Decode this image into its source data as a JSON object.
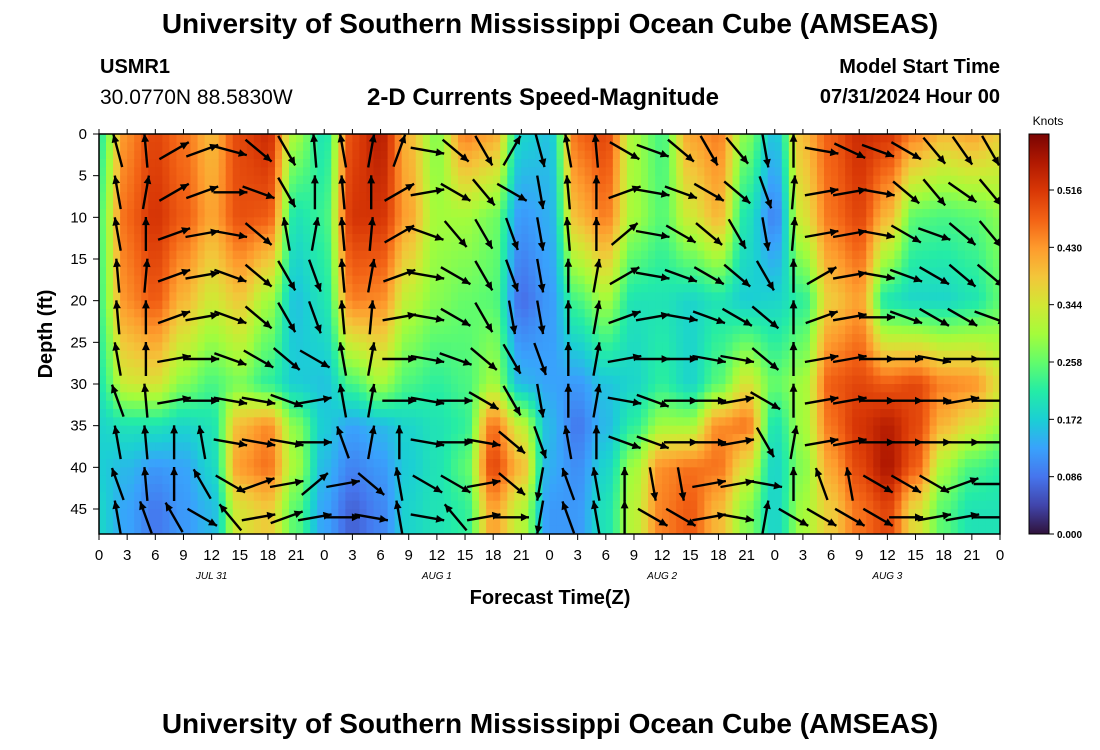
{
  "header": {
    "title": "University of Southern Mississippi Ocean Cube (AMSEAS)",
    "footer_title": "University of Southern Mississippi Ocean Cube (AMSEAS)",
    "station_id": "USMR1",
    "station_coords": "30.0770N  88.5830W",
    "subtitle": "2-D Currents Speed-Magnitude",
    "model_start_label": "Model Start Time",
    "model_start_value": "07/31/2024 Hour 00"
  },
  "chart_data": {
    "type": "heatmap",
    "title": "2-D Currents Speed-Magnitude",
    "xlabel": "Forecast Time(Z)",
    "ylabel": "Depth (ft)",
    "x_unit": "hours since 07/31/2024 00Z",
    "xlim": [
      0,
      96
    ],
    "ylim": [
      0,
      48
    ],
    "x_tick_labels": [
      "0",
      "3",
      "6",
      "9",
      "12",
      "15",
      "18",
      "21",
      "0",
      "3",
      "6",
      "9",
      "12",
      "15",
      "18",
      "21",
      "0",
      "3",
      "6",
      "9",
      "12",
      "15",
      "18",
      "21",
      "0",
      "3",
      "6",
      "9",
      "12",
      "15",
      "18",
      "21",
      "0"
    ],
    "y_ticks": [
      0,
      5,
      10,
      15,
      20,
      25,
      30,
      35,
      40,
      45
    ],
    "date_labels": [
      {
        "label": "JUL 31",
        "hour": 12
      },
      {
        "label": "AUG 1",
        "hour": 36
      },
      {
        "label": "AUG 2",
        "hour": 60
      },
      {
        "label": "AUG 3",
        "hour": 84
      }
    ],
    "colorbar": {
      "label": "Knots",
      "min": 0.0,
      "max": 0.6,
      "ticks": [
        0.0,
        0.086,
        0.172,
        0.258,
        0.344,
        0.43,
        0.516
      ],
      "tick_labels": [
        "0.000",
        "0.086",
        "0.172",
        "0.258",
        "0.344",
        "0.430",
        "0.516"
      ],
      "colors": [
        "#30123b",
        "#4145ab",
        "#4675ed",
        "#39a2fc",
        "#1bcfd4",
        "#24eca6",
        "#61fc6c",
        "#a4fc3b",
        "#d1e834",
        "#f3c63a",
        "#fe9b2d",
        "#f36315",
        "#d93806",
        "#b11901",
        "#7a0403"
      ]
    },
    "speed_keyframes": [
      {
        "hour": 0,
        "depths": [
          0,
          10,
          20,
          30,
          35,
          40,
          45
        ],
        "values": [
          0.22,
          0.25,
          0.24,
          0.21,
          0.18,
          0.17,
          0.18
        ]
      },
      {
        "hour": 3,
        "depths": [
          0,
          10,
          20,
          30,
          35,
          40,
          45
        ],
        "values": [
          0.44,
          0.47,
          0.44,
          0.34,
          0.2,
          0.15,
          0.13
        ]
      },
      {
        "hour": 6,
        "depths": [
          0,
          10,
          20,
          30,
          35,
          40,
          45
        ],
        "values": [
          0.5,
          0.52,
          0.48,
          0.35,
          0.2,
          0.12,
          0.09
        ]
      },
      {
        "hour": 9,
        "depths": [
          0,
          10,
          20,
          30,
          35,
          40,
          45
        ],
        "values": [
          0.46,
          0.48,
          0.4,
          0.28,
          0.18,
          0.13,
          0.12
        ]
      },
      {
        "hour": 12,
        "depths": [
          0,
          10,
          20,
          30,
          35,
          40,
          45
        ],
        "values": [
          0.4,
          0.42,
          0.34,
          0.24,
          0.2,
          0.18,
          0.15
        ]
      },
      {
        "hour": 15,
        "depths": [
          0,
          10,
          20,
          30,
          35,
          40,
          45
        ],
        "values": [
          0.5,
          0.49,
          0.38,
          0.27,
          0.4,
          0.43,
          0.35
        ]
      },
      {
        "hour": 18,
        "depths": [
          0,
          10,
          20,
          30,
          35,
          40,
          45
        ],
        "values": [
          0.53,
          0.48,
          0.3,
          0.22,
          0.44,
          0.46,
          0.38
        ]
      },
      {
        "hour": 21,
        "depths": [
          0,
          10,
          20,
          30,
          35,
          40,
          45
        ],
        "values": [
          0.3,
          0.2,
          0.16,
          0.17,
          0.28,
          0.3,
          0.25
        ]
      },
      {
        "hour": 24,
        "depths": [
          0,
          10,
          20,
          30,
          35,
          40,
          45
        ],
        "values": [
          0.2,
          0.23,
          0.2,
          0.16,
          0.17,
          0.15,
          0.13
        ]
      },
      {
        "hour": 27,
        "depths": [
          0,
          10,
          20,
          30,
          35,
          40,
          45
        ],
        "values": [
          0.5,
          0.52,
          0.45,
          0.24,
          0.13,
          0.1,
          0.07
        ]
      },
      {
        "hour": 30,
        "depths": [
          0,
          10,
          20,
          30,
          35,
          40,
          45
        ],
        "values": [
          0.55,
          0.52,
          0.44,
          0.3,
          0.15,
          0.12,
          0.1
        ]
      },
      {
        "hour": 33,
        "depths": [
          0,
          10,
          20,
          30,
          35,
          40,
          45
        ],
        "values": [
          0.4,
          0.42,
          0.32,
          0.24,
          0.18,
          0.17,
          0.18
        ]
      },
      {
        "hour": 36,
        "depths": [
          0,
          10,
          20,
          30,
          35,
          40,
          45
        ],
        "values": [
          0.28,
          0.3,
          0.28,
          0.22,
          0.2,
          0.2,
          0.2
        ]
      },
      {
        "hour": 39,
        "depths": [
          0,
          10,
          20,
          30,
          35,
          40,
          45
        ],
        "values": [
          0.45,
          0.3,
          0.26,
          0.24,
          0.22,
          0.25,
          0.22
        ]
      },
      {
        "hour": 42,
        "depths": [
          0,
          10,
          20,
          30,
          35,
          40,
          45
        ],
        "values": [
          0.42,
          0.27,
          0.25,
          0.3,
          0.46,
          0.5,
          0.42
        ]
      },
      {
        "hour": 45,
        "depths": [
          0,
          10,
          20,
          30,
          35,
          40,
          45
        ],
        "values": [
          0.18,
          0.12,
          0.08,
          0.15,
          0.33,
          0.4,
          0.32
        ]
      },
      {
        "hour": 48,
        "depths": [
          0,
          10,
          20,
          30,
          35,
          40,
          45
        ],
        "values": [
          0.16,
          0.14,
          0.12,
          0.13,
          0.15,
          0.14,
          0.12
        ]
      },
      {
        "hour": 51,
        "depths": [
          0,
          10,
          20,
          30,
          35,
          40,
          45
        ],
        "values": [
          0.47,
          0.4,
          0.24,
          0.12,
          0.09,
          0.11,
          0.12
        ]
      },
      {
        "hour": 54,
        "depths": [
          0,
          10,
          20,
          30,
          35,
          40,
          45
        ],
        "values": [
          0.5,
          0.45,
          0.3,
          0.16,
          0.15,
          0.18,
          0.2
        ]
      },
      {
        "hour": 57,
        "depths": [
          0,
          10,
          20,
          30,
          35,
          40,
          45
        ],
        "values": [
          0.3,
          0.3,
          0.2,
          0.18,
          0.22,
          0.3,
          0.32
        ]
      },
      {
        "hour": 60,
        "depths": [
          0,
          10,
          20,
          30,
          35,
          40,
          45
        ],
        "values": [
          0.24,
          0.25,
          0.2,
          0.22,
          0.3,
          0.44,
          0.45
        ]
      },
      {
        "hour": 63,
        "depths": [
          0,
          10,
          20,
          30,
          35,
          40,
          45
        ],
        "values": [
          0.42,
          0.34,
          0.18,
          0.18,
          0.3,
          0.46,
          0.48
        ]
      },
      {
        "hour": 66,
        "depths": [
          0,
          10,
          20,
          30,
          35,
          40,
          45
        ],
        "values": [
          0.45,
          0.4,
          0.2,
          0.25,
          0.44,
          0.46,
          0.4
        ]
      },
      {
        "hour": 69,
        "depths": [
          0,
          10,
          20,
          30,
          35,
          40,
          45
        ],
        "values": [
          0.28,
          0.2,
          0.17,
          0.35,
          0.46,
          0.35,
          0.28
        ]
      },
      {
        "hour": 72,
        "depths": [
          0,
          10,
          20,
          30,
          35,
          40,
          45
        ],
        "values": [
          0.16,
          0.1,
          0.18,
          0.26,
          0.2,
          0.18,
          0.18
        ]
      },
      {
        "hour": 75,
        "depths": [
          0,
          10,
          20,
          30,
          35,
          40,
          45
        ],
        "values": [
          0.4,
          0.35,
          0.22,
          0.3,
          0.3,
          0.28,
          0.3
        ]
      },
      {
        "hour": 78,
        "depths": [
          0,
          10,
          20,
          30,
          35,
          40,
          45
        ],
        "values": [
          0.48,
          0.46,
          0.38,
          0.48,
          0.46,
          0.42,
          0.38
        ]
      },
      {
        "hour": 81,
        "depths": [
          0,
          10,
          20,
          30,
          35,
          40,
          45
        ],
        "values": [
          0.53,
          0.5,
          0.42,
          0.5,
          0.52,
          0.5,
          0.46
        ]
      },
      {
        "hour": 84,
        "depths": [
          0,
          10,
          20,
          30,
          35,
          40,
          45
        ],
        "values": [
          0.52,
          0.4,
          0.2,
          0.48,
          0.55,
          0.56,
          0.5
        ]
      },
      {
        "hour": 87,
        "depths": [
          0,
          10,
          20,
          30,
          35,
          40,
          45
        ],
        "values": [
          0.45,
          0.25,
          0.18,
          0.5,
          0.5,
          0.48,
          0.36
        ]
      },
      {
        "hour": 90,
        "depths": [
          0,
          10,
          20,
          30,
          35,
          40,
          45
        ],
        "values": [
          0.4,
          0.24,
          0.18,
          0.45,
          0.4,
          0.3,
          0.25
        ]
      },
      {
        "hour": 93,
        "depths": [
          0,
          10,
          20,
          30,
          35,
          40,
          45
        ],
        "values": [
          0.42,
          0.25,
          0.2,
          0.44,
          0.35,
          0.24,
          0.2
        ]
      },
      {
        "hour": 96,
        "depths": [
          0,
          10,
          20,
          30,
          35,
          40,
          45
        ],
        "values": [
          0.38,
          0.28,
          0.25,
          0.36,
          0.3,
          0.22,
          0.2
        ]
      }
    ],
    "vectors": {
      "description": "current direction arrows (degrees, 0 = east, counter-clockwise) at 3-hourly columns and 5-ft depth rows",
      "hours": [
        2,
        5,
        8,
        11,
        14,
        17,
        20,
        23,
        26,
        29,
        32,
        35,
        38,
        41,
        44,
        47,
        50,
        53,
        56,
        59,
        62,
        65,
        68,
        71,
        74,
        77,
        80,
        83,
        86,
        89,
        92,
        95
      ],
      "depths": [
        2,
        7,
        12,
        17,
        22,
        27,
        32,
        37,
        42,
        46
      ],
      "angles_deg": [
        [
          105,
          95,
          30,
          20,
          345,
          -40,
          -60,
          95,
          100,
          80,
          70,
          -10,
          -40,
          -60,
          60,
          -75,
          100,
          95,
          -30,
          -20,
          -40,
          -60,
          -50,
          -80,
          90,
          -10,
          -25,
          -20,
          -30,
          -50,
          -55,
          -60
        ],
        [
          100,
          80,
          30,
          20,
          0,
          -20,
          -60,
          90,
          95,
          90,
          30,
          10,
          -30,
          -50,
          -30,
          -80,
          95,
          90,
          20,
          -10,
          -20,
          -30,
          -40,
          -70,
          85,
          10,
          10,
          -10,
          -40,
          -50,
          -35,
          -50
        ],
        [
          100,
          90,
          20,
          10,
          -10,
          -40,
          100,
          80,
          95,
          85,
          30,
          -20,
          -50,
          -60,
          -70,
          -80,
          95,
          90,
          40,
          -10,
          -30,
          -40,
          -60,
          -80,
          85,
          10,
          10,
          -10,
          -30,
          -20,
          -40,
          -50
        ],
        [
          95,
          85,
          20,
          10,
          -20,
          -40,
          -60,
          -70,
          95,
          80,
          20,
          -10,
          -30,
          -60,
          -70,
          -80,
          90,
          80,
          30,
          -10,
          -20,
          -30,
          -40,
          -60,
          90,
          30,
          10,
          -10,
          -20,
          -30,
          -40,
          -40
        ],
        [
          95,
          90,
          20,
          10,
          -20,
          -40,
          -60,
          -70,
          95,
          85,
          10,
          -10,
          -30,
          -60,
          -80,
          -80,
          90,
          80,
          20,
          10,
          -10,
          -20,
          -30,
          -40,
          90,
          20,
          10,
          0,
          -20,
          -30,
          -30,
          -20
        ],
        [
          100,
          90,
          10,
          0,
          -20,
          -30,
          -40,
          -30,
          100,
          80,
          0,
          -10,
          -20,
          -40,
          -60,
          -70,
          90,
          80,
          10,
          0,
          0,
          -10,
          -10,
          -40,
          90,
          10,
          10,
          0,
          0,
          -10,
          0,
          0
        ],
        [
          110,
          95,
          10,
          0,
          -10,
          -10,
          -20,
          10,
          100,
          80,
          0,
          -10,
          0,
          -30,
          -60,
          -80,
          90,
          80,
          -10,
          -20,
          0,
          0,
          10,
          -30,
          90,
          10,
          10,
          0,
          0,
          0,
          10,
          0
        ],
        [
          100,
          95,
          90,
          100,
          -10,
          -10,
          -10,
          0,
          110,
          80,
          90,
          -10,
          0,
          -10,
          -40,
          -70,
          100,
          90,
          -20,
          -20,
          0,
          0,
          10,
          -60,
          80,
          10,
          10,
          0,
          0,
          0,
          0,
          0
        ],
        [
          110,
          95,
          90,
          120,
          -30,
          20,
          10,
          40,
          10,
          -40,
          100,
          -30,
          -30,
          10,
          -40,
          -100,
          110,
          100,
          90,
          -80,
          -80,
          10,
          10,
          -10,
          90,
          110,
          100,
          -30,
          -30,
          -30,
          20,
          0
        ],
        [
          100,
          110,
          120,
          -30,
          130,
          10,
          20,
          10,
          0,
          -10,
          100,
          -10,
          130,
          10,
          0,
          -100,
          110,
          100,
          90,
          -30,
          -30,
          10,
          -10,
          80,
          -30,
          -30,
          -30,
          -30,
          0,
          10,
          10,
          0
        ]
      ]
    }
  }
}
